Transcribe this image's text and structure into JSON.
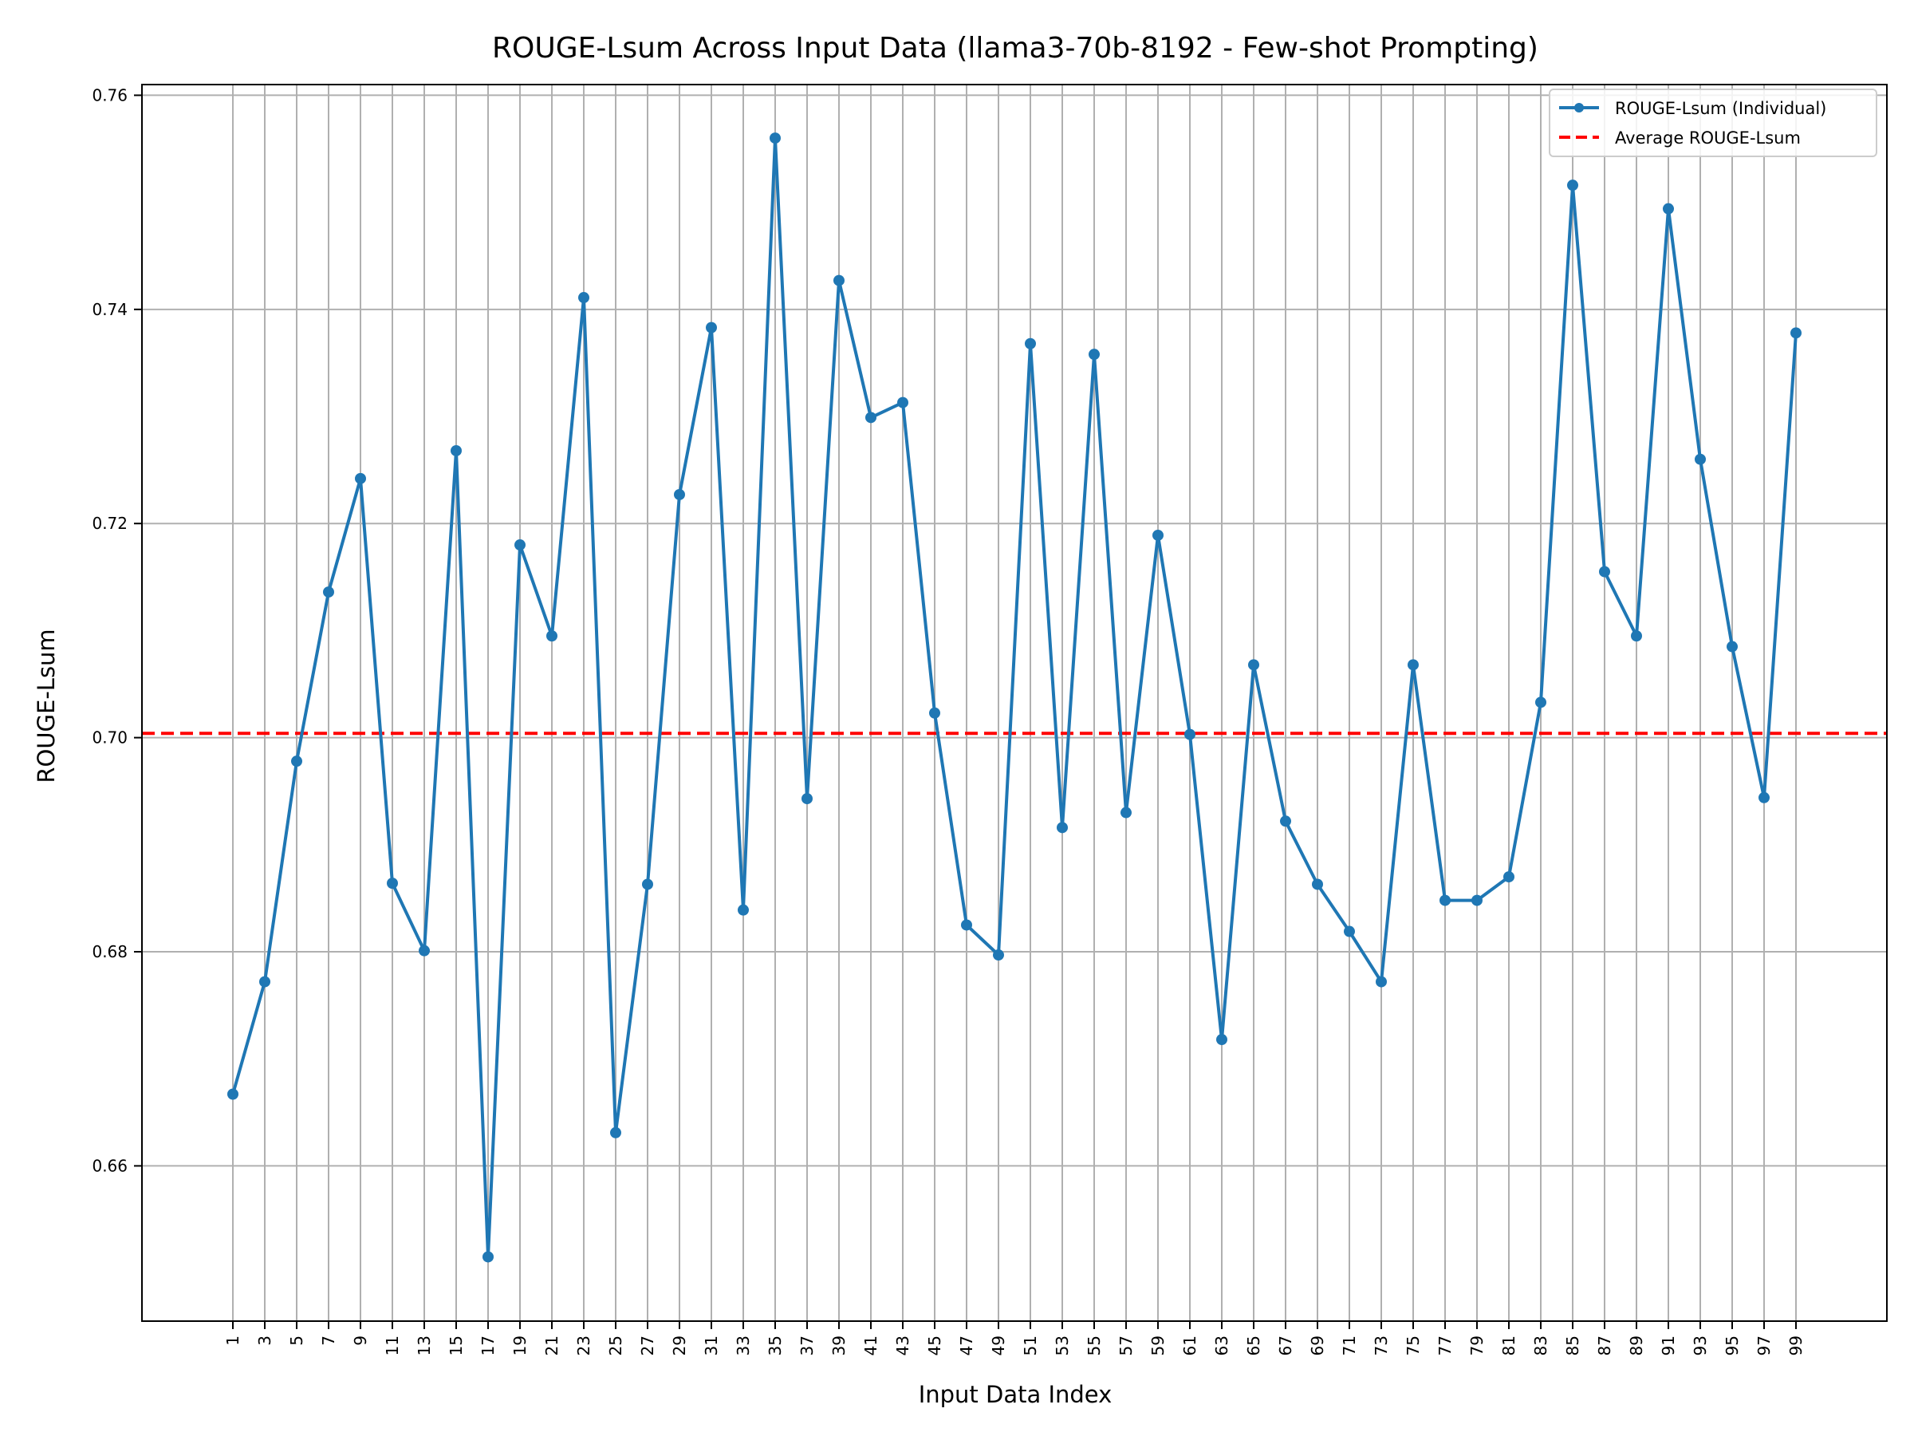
{
  "chart_data": {
    "type": "line",
    "title": "ROUGE-Lsum Across Input Data (llama3-70b-8192 - Few-shot Prompting)",
    "xlabel": "Input Data Index",
    "ylabel": "ROUGE-Lsum",
    "x": [
      1,
      3,
      5,
      7,
      9,
      11,
      13,
      15,
      17,
      19,
      21,
      23,
      25,
      27,
      29,
      31,
      33,
      35,
      37,
      39,
      41,
      43,
      45,
      47,
      49,
      51,
      53,
      55,
      57,
      59,
      61,
      63,
      65,
      67,
      69,
      71,
      73,
      75,
      77,
      79,
      81,
      83,
      85,
      87,
      89,
      91,
      93,
      95,
      97,
      99
    ],
    "xticks": [
      "1",
      "3",
      "5",
      "7",
      "9",
      "11",
      "13",
      "15",
      "17",
      "19",
      "21",
      "23",
      "25",
      "27",
      "29",
      "31",
      "33",
      "35",
      "37",
      "39",
      "41",
      "43",
      "45",
      "47",
      "49",
      "51",
      "53",
      "55",
      "57",
      "59",
      "61",
      "63",
      "65",
      "67",
      "69",
      "71",
      "73",
      "75",
      "77",
      "79",
      "81",
      "83",
      "85",
      "87",
      "89",
      "91",
      "93",
      "95",
      "97",
      "99"
    ],
    "yticks": [
      "0.66",
      "0.68",
      "0.70",
      "0.72",
      "0.74",
      "0.76"
    ],
    "xlim": [
      -4.7,
      104.7
    ],
    "ylim": [
      0.6455,
      0.761
    ],
    "grid": true,
    "legend_position": "top-right",
    "series": [
      {
        "name": "ROUGE-Lsum (Individual)",
        "color": "#1f77b4",
        "style": "solid-with-markers",
        "values": [
          0.6667,
          0.6772,
          0.6978,
          0.7136,
          0.7242,
          0.6864,
          0.6801,
          0.7268,
          0.6515,
          0.718,
          0.7095,
          0.7411,
          0.6631,
          0.6863,
          0.7227,
          0.7383,
          0.6839,
          0.756,
          0.6943,
          0.7427,
          0.7299,
          0.7313,
          0.7023,
          0.6825,
          0.6797,
          0.7368,
          0.6916,
          0.7358,
          0.693,
          0.7189,
          0.7003,
          0.6718,
          0.7068,
          0.6922,
          0.6863,
          0.6819,
          0.6772,
          0.7068,
          0.6848,
          0.6848,
          0.687,
          0.7033,
          0.7516,
          0.7155,
          0.7095,
          0.7494,
          0.726,
          0.7085,
          0.6944,
          0.7378
        ]
      },
      {
        "name": "Average ROUGE-Lsum",
        "color": "#ff0000",
        "style": "dashed",
        "value": 0.7004
      }
    ]
  }
}
